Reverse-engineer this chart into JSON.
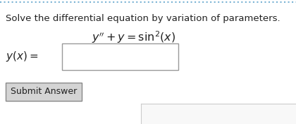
{
  "bg_color": "#ffffff",
  "input_bg": "#ffffff",
  "btn_bg": "#d4d4d4",
  "border_color_top": "#6baed6",
  "text_color": "#222222",
  "title_text": "Solve the differential equation by variation of parameters.",
  "button_text": "Submit Answer",
  "title_fontsize": 9.5,
  "eq_fontsize": 11.5,
  "label_fontsize": 11,
  "btn_fontsize": 9,
  "top_dot_color": "#7ab3d4",
  "box_edge_color": "#999999",
  "btn_edge_color": "#888888",
  "panel_line_color": "#cccccc"
}
